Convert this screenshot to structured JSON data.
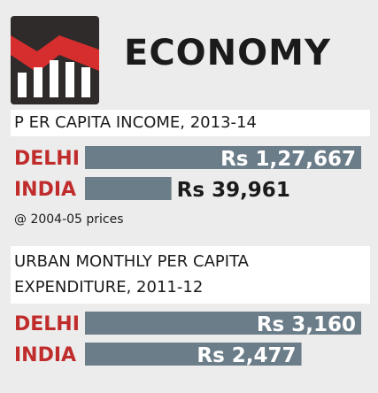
{
  "header": {
    "title": "ECONOMY"
  },
  "colors": {
    "bar": "#6b7d89",
    "label": "#c02c2c",
    "text": "#1b1b1b",
    "logo_bg": "#2f2b2a",
    "logo_accent": "#d62e2e"
  },
  "footnote": "@ 2004-05 prices",
  "chart_data": [
    {
      "type": "bar",
      "orientation": "horizontal",
      "title": "P ER CAPITA INCOME, 2013-14",
      "categories": [
        "DELHI",
        "INDIA"
      ],
      "values": [
        127667,
        39961
      ],
      "value_labels": [
        "Rs 1,27,667",
        "Rs 39,961"
      ],
      "unit": "Rs"
    },
    {
      "type": "bar",
      "orientation": "horizontal",
      "title": "URBAN MONTHLY PER CAPITA EXPENDITURE, 2011-12",
      "categories": [
        "DELHI",
        "INDIA"
      ],
      "values": [
        3160,
        2477
      ],
      "value_labels": [
        "Rs 3,160",
        "Rs 2,477"
      ],
      "unit": "Rs"
    }
  ]
}
